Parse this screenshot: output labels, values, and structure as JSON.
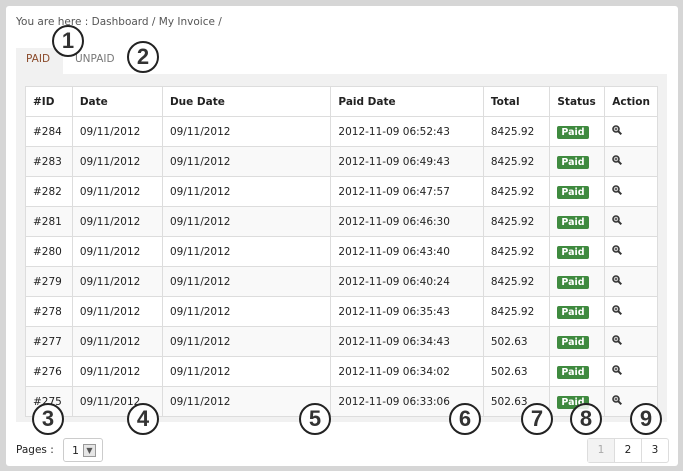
{
  "breadcrumb": "You are here : Dashboard / My Invoice /",
  "tabs": [
    {
      "label": "PAID",
      "active": true
    },
    {
      "label": "UNPAID",
      "active": false
    }
  ],
  "table": {
    "headers": [
      "#ID",
      "Date",
      "Due Date",
      "Paid Date",
      "Total",
      "Status",
      "Action"
    ],
    "rows": [
      [
        "#284",
        "09/11/2012",
        "09/11/2012",
        "2012-11-09 06:52:43",
        "8425.92",
        "Paid"
      ],
      [
        "#283",
        "09/11/2012",
        "09/11/2012",
        "2012-11-09 06:49:43",
        "8425.92",
        "Paid"
      ],
      [
        "#282",
        "09/11/2012",
        "09/11/2012",
        "2012-11-09 06:47:57",
        "8425.92",
        "Paid"
      ],
      [
        "#281",
        "09/11/2012",
        "09/11/2012",
        "2012-11-09 06:46:30",
        "8425.92",
        "Paid"
      ],
      [
        "#280",
        "09/11/2012",
        "09/11/2012",
        "2012-11-09 06:43:40",
        "8425.92",
        "Paid"
      ],
      [
        "#279",
        "09/11/2012",
        "09/11/2012",
        "2012-11-09 06:40:24",
        "8425.92",
        "Paid"
      ],
      [
        "#278",
        "09/11/2012",
        "09/11/2012",
        "2012-11-09 06:35:43",
        "8425.92",
        "Paid"
      ],
      [
        "#277",
        "09/11/2012",
        "09/11/2012",
        "2012-11-09 06:34:43",
        "502.63",
        "Paid"
      ],
      [
        "#276",
        "09/11/2012",
        "09/11/2012",
        "2012-11-09 06:34:02",
        "502.63",
        "Paid"
      ],
      [
        "#275",
        "09/11/2012",
        "09/11/2012",
        "2012-11-09 06:33:06",
        "502.63",
        "Paid"
      ]
    ],
    "action_icon": "zoom-in-icon",
    "status_color": "#3f8a3f"
  },
  "pages_label": "Pages :",
  "pages_select": "1",
  "pagination": [
    "1",
    "2",
    "3"
  ],
  "callouts": [
    "1",
    "2",
    "3",
    "4",
    "5",
    "6",
    "7",
    "8",
    "9"
  ]
}
